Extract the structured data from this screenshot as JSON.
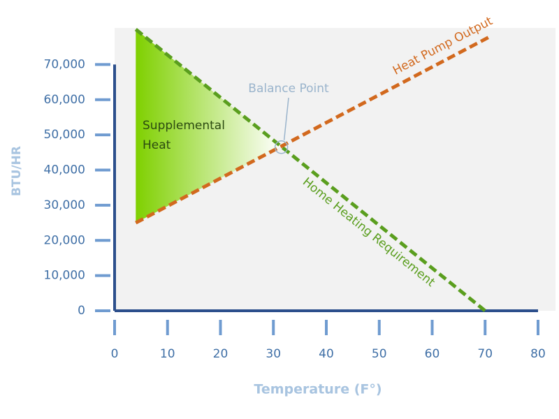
{
  "chart_data": {
    "type": "line",
    "xlabel": "Temperature (F°)",
    "ylabel": "BTU/HR",
    "xlim": [
      0,
      80
    ],
    "ylim": [
      0,
      80000
    ],
    "xticks": [
      0,
      10,
      20,
      30,
      40,
      50,
      60,
      70,
      80
    ],
    "yticks": [
      0,
      {
        "value": 10000,
        "label": "10,000"
      },
      {
        "value": 20000,
        "label": "20,000"
      },
      {
        "value": 30000,
        "label": "30,000"
      },
      {
        "value": 40000,
        "label": "40,000"
      },
      {
        "value": 50000,
        "label": "50,000"
      },
      {
        "value": 60000,
        "label": "60,000"
      },
      {
        "value": 70000,
        "label": "70,000"
      }
    ],
    "series": [
      {
        "name": "Home Heating Requirement",
        "color": "#5a9e1e",
        "x": [
          4,
          70
        ],
        "values": [
          80000,
          0
        ]
      },
      {
        "name": "Heat Pump Output",
        "color": "#d2691e",
        "x": [
          4,
          71
        ],
        "values": [
          25000,
          78000
        ]
      }
    ],
    "annotations": [
      {
        "text": "Balance Point",
        "x": 31.5,
        "y": 46500
      },
      {
        "text": "Supplemental Heat"
      }
    ]
  }
}
